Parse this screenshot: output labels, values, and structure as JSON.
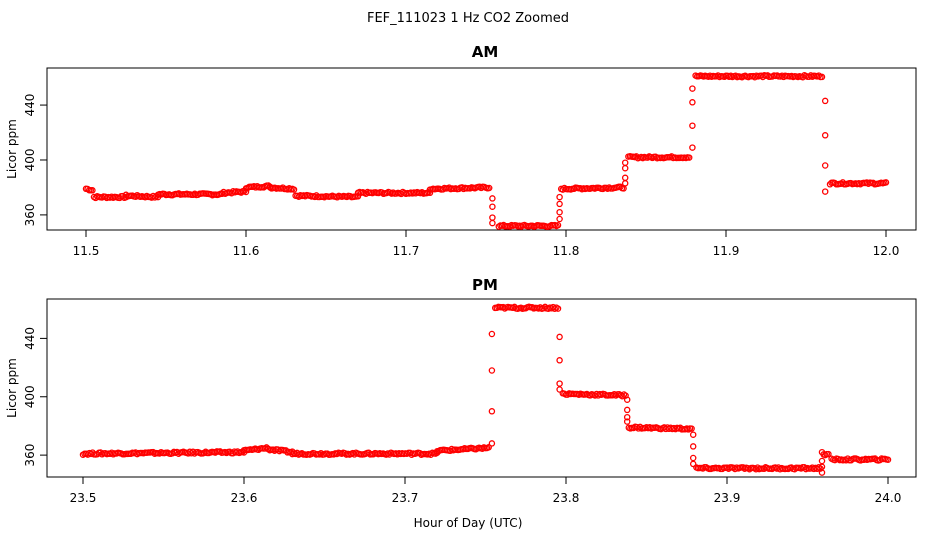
{
  "chart_data": {
    "title": "FEF_111023  1 Hz CO2 Zoomed",
    "xlabel": "Hour of Day (UTC)",
    "color": "#ff0000",
    "panels": [
      {
        "type": "scatter",
        "title": "AM",
        "ylabel": "Licor ppm",
        "xlim": [
          11.5,
          12.0
        ],
        "ylim": [
          349,
          467
        ],
        "xticks": [
          "11.5",
          "11.6",
          "11.7",
          "11.8",
          "11.9",
          "12.0"
        ],
        "yticks": [
          "360",
          "400",
          "440"
        ],
        "segments": [
          {
            "x": [
              11.5,
              11.504
            ],
            "y": [
              379,
              378
            ]
          },
          {
            "x": [
              11.505,
              11.525
            ],
            "y": [
              373,
              373
            ]
          },
          {
            "x": [
              11.525,
              11.545
            ],
            "y": [
              374,
              373
            ]
          },
          {
            "x": [
              11.545,
              11.585
            ],
            "y": [
              375,
              375
            ]
          },
          {
            "x": [
              11.585,
              11.6
            ],
            "y": [
              376,
              377
            ]
          },
          {
            "x": [
              11.6,
              11.615
            ],
            "y": [
              380,
              381
            ]
          },
          {
            "x": [
              11.615,
              11.63
            ],
            "y": [
              380,
              379
            ]
          },
          {
            "x": [
              11.631,
              11.67
            ],
            "y": [
              374,
              373
            ]
          },
          {
            "x": [
              11.67,
              11.715
            ],
            "y": [
              376,
              376
            ]
          },
          {
            "x": [
              11.715,
              11.752
            ],
            "y": [
              379,
              380
            ]
          },
          {
            "x": [
              11.758,
              11.795
            ],
            "y": [
              352,
              352
            ]
          },
          {
            "x": [
              11.797,
              11.836
            ],
            "y": [
              379,
              380
            ]
          },
          {
            "x": [
              11.839,
              11.877
            ],
            "y": [
              402,
              402
            ]
          },
          {
            "x": [
              11.881,
              11.96
            ],
            "y": [
              461,
              461
            ]
          },
          {
            "x": [
              11.965,
              12.0
            ],
            "y": [
              383,
              383
            ]
          }
        ],
        "transitions": [
          {
            "x": 11.754,
            "y": [
              372,
              366,
              358,
              354
            ]
          },
          {
            "x": 11.796,
            "y": [
              357,
              362,
              368,
              373
            ]
          },
          {
            "x": 11.837,
            "y": [
              383,
              387,
              394,
              398
            ]
          },
          {
            "x": 11.879,
            "y": [
              409,
              425,
              442,
              452
            ]
          },
          {
            "x": 11.962,
            "y": [
              443,
              418,
              396,
              377
            ]
          }
        ]
      },
      {
        "type": "scatter",
        "title": "PM",
        "ylabel": "Licor ppm",
        "xlim": [
          23.5,
          24.0
        ],
        "ylim": [
          345,
          467
        ],
        "xticks": [
          "23.5",
          "23.6",
          "23.7",
          "23.8",
          "23.9",
          "24.0"
        ],
        "yticks": [
          "360",
          "400",
          "440"
        ],
        "segments": [
          {
            "x": [
              23.5,
              23.6
            ],
            "y": [
              361,
              362
            ]
          },
          {
            "x": [
              23.6,
              23.615
            ],
            "y": [
              363,
              365
            ]
          },
          {
            "x": [
              23.615,
              23.63
            ],
            "y": [
              364,
              362
            ]
          },
          {
            "x": [
              23.63,
              23.72
            ],
            "y": [
              361,
              361
            ]
          },
          {
            "x": [
              23.72,
              23.752
            ],
            "y": [
              363,
              365
            ]
          },
          {
            "x": [
              23.756,
              23.795
            ],
            "y": [
              461,
              461
            ]
          },
          {
            "x": [
              23.798,
              23.837
            ],
            "y": [
              402,
              401
            ]
          },
          {
            "x": [
              23.839,
              23.878
            ],
            "y": [
              379,
              378
            ]
          },
          {
            "x": [
              23.881,
              23.958
            ],
            "y": [
              351,
              351
            ]
          },
          {
            "x": [
              23.96,
              23.963
            ],
            "y": [
              361,
              360
            ]
          },
          {
            "x": [
              23.965,
              24.0
            ],
            "y": [
              357,
              357
            ]
          }
        ],
        "transitions": [
          {
            "x": 23.754,
            "y": [
              368,
              390,
              418,
              443
            ]
          },
          {
            "x": 23.796,
            "y": [
              441,
              425,
              409,
              405
            ]
          },
          {
            "x": 23.838,
            "y": [
              398,
              391,
              386,
              383
            ]
          },
          {
            "x": 23.879,
            "y": [
              374,
              366,
              358,
              354
            ]
          },
          {
            "x": 23.959,
            "y": [
              352,
              348,
              356,
              362
            ]
          }
        ]
      }
    ]
  }
}
